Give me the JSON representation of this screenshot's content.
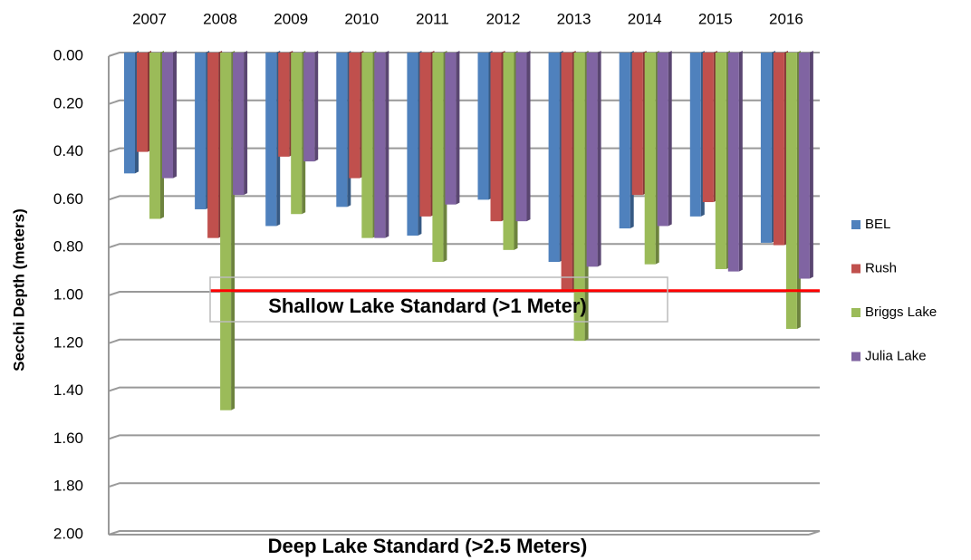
{
  "chart_data": {
    "type": "bar",
    "y_axis_label": "Secchi Depth (meters)",
    "categories": [
      "2007",
      "2008",
      "2009",
      "2010",
      "2011",
      "2012",
      "2013",
      "2014",
      "2015",
      "2016"
    ],
    "series": [
      {
        "name": "BEL",
        "color": "#4f81bd",
        "values": [
          0.49,
          0.64,
          0.71,
          0.63,
          0.75,
          0.6,
          0.86,
          0.72,
          0.67,
          0.78
        ]
      },
      {
        "name": "Rush",
        "color": "#c0504d",
        "values": [
          0.4,
          0.76,
          0.42,
          0.51,
          0.67,
          0.69,
          0.98,
          0.58,
          0.61,
          0.79
        ]
      },
      {
        "name": "Briggs Lake",
        "color": "#9bbb59",
        "values": [
          0.68,
          1.48,
          0.66,
          0.76,
          0.86,
          0.81,
          1.19,
          0.87,
          0.89,
          1.14
        ]
      },
      {
        "name": "Julia Lake",
        "color": "#8064a2",
        "values": [
          0.51,
          0.58,
          0.44,
          0.76,
          0.62,
          0.69,
          0.88,
          0.71,
          0.9,
          0.93
        ]
      }
    ],
    "ylim": [
      0,
      2
    ],
    "y_inverted": true,
    "yticks": [
      {
        "value": 0,
        "label": "0.00"
      },
      {
        "value": 0.2,
        "label": "0.20"
      },
      {
        "value": 0.4,
        "label": "0.40"
      },
      {
        "value": 0.6,
        "label": "0.60"
      },
      {
        "value": 0.8,
        "label": "0.80"
      },
      {
        "value": 1,
        "label": "1.00"
      },
      {
        "value": 1.2,
        "label": "1.20"
      },
      {
        "value": 1.4,
        "label": "1.40"
      },
      {
        "value": 1.6,
        "label": "1.60"
      },
      {
        "value": 1.8,
        "label": "1.80"
      },
      {
        "value": 2,
        "label": "2.00"
      }
    ],
    "grid": true,
    "legend": "right",
    "reference_line": {
      "value": 0.98,
      "color": "#ff0000",
      "label": "Shallow Lake Standard (>1 Meter)"
    },
    "annotation": "Deep Lake Standard (>2.5 Meters)"
  }
}
